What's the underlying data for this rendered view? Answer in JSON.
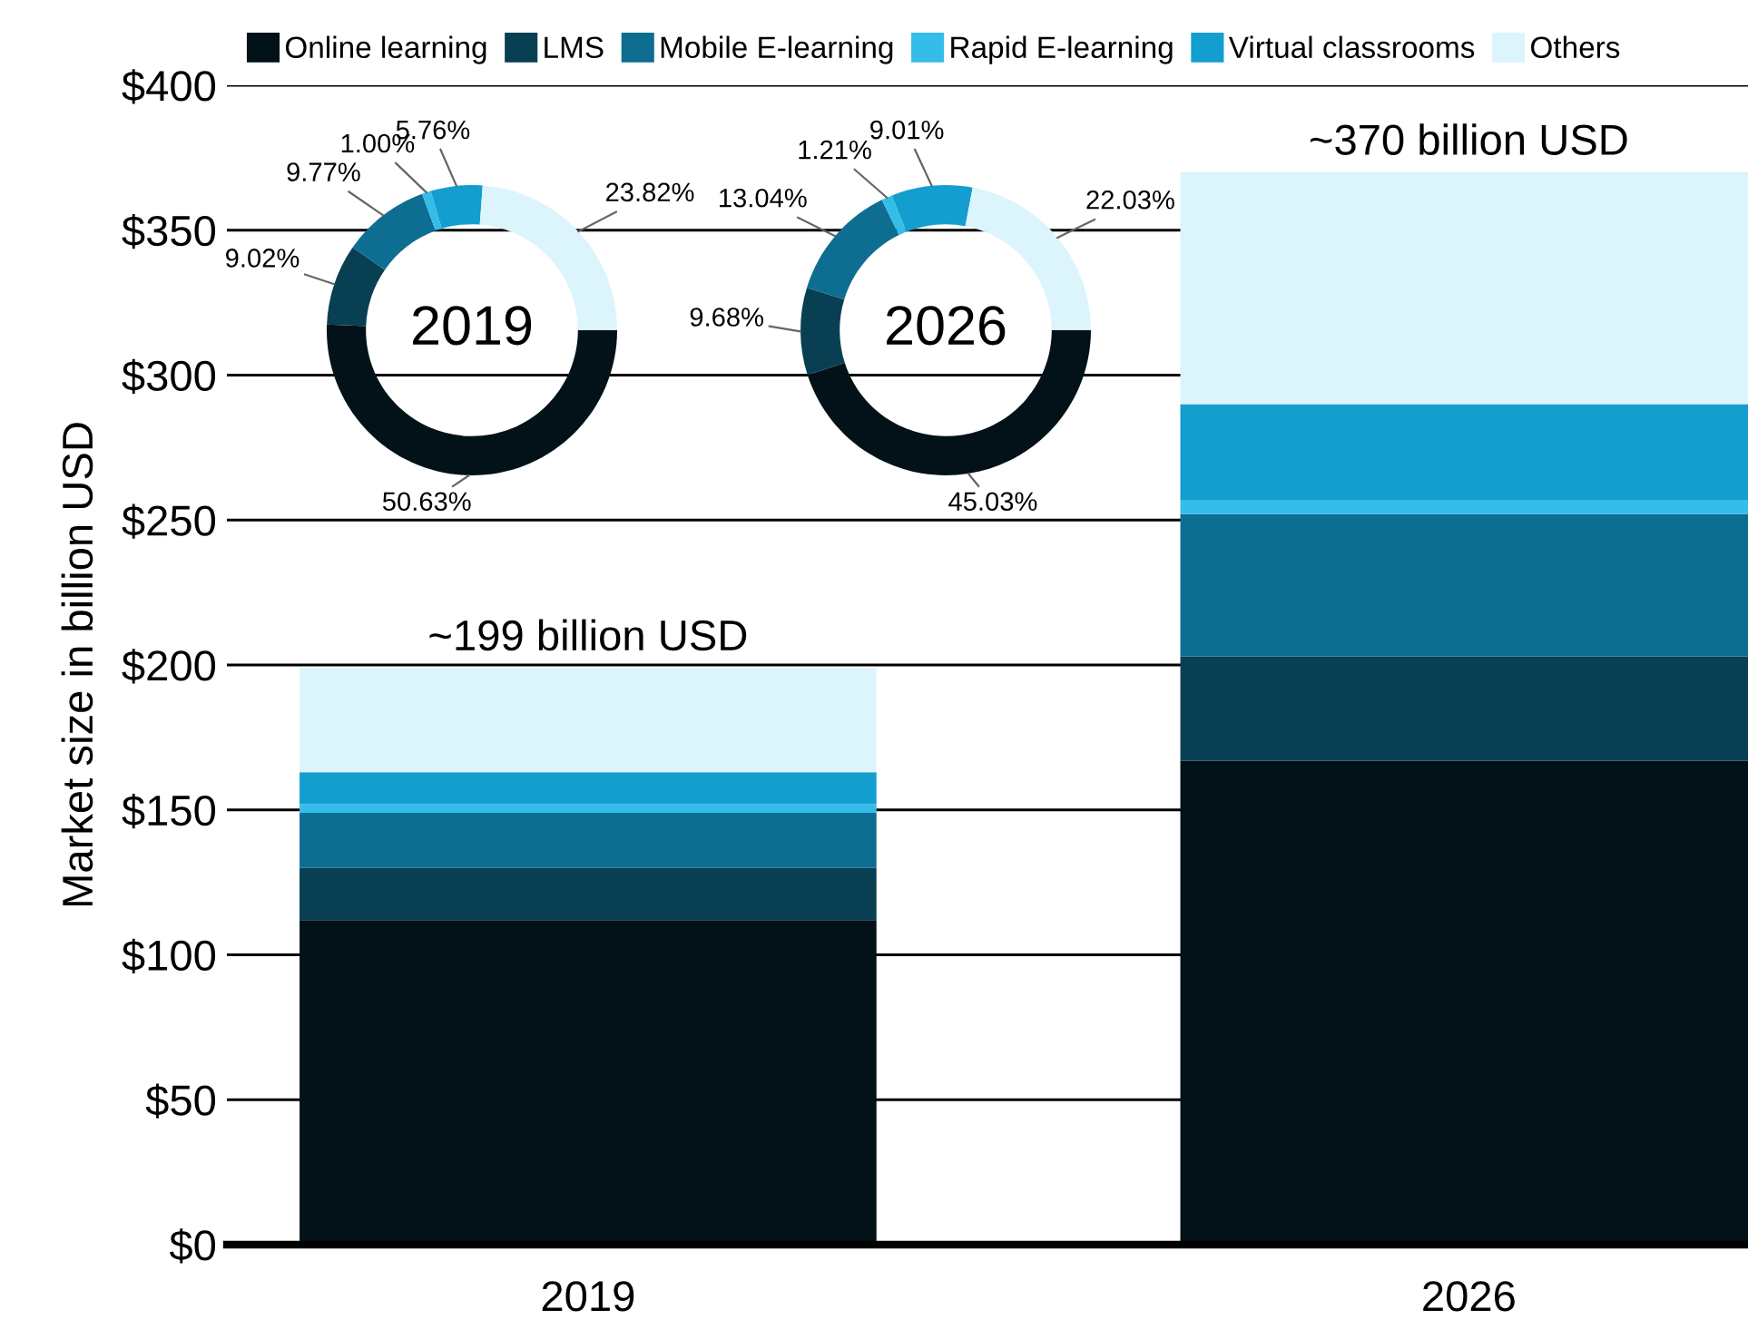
{
  "chart_data": [
    {
      "type": "bar",
      "stacked": true,
      "ylabel": "Market size in billion USD",
      "categories": [
        "2019",
        "2026"
      ],
      "series": [
        {
          "name": "Online learning",
          "color": "#031118",
          "values": [
            112,
            167
          ]
        },
        {
          "name": "LMS",
          "color": "#083f53",
          "values": [
            18,
            36
          ]
        },
        {
          "name": "Mobile E-learning",
          "color": "#0d6e91",
          "values": [
            19,
            49
          ]
        },
        {
          "name": "Rapid E-learning",
          "color": "#35bde9",
          "values": [
            3,
            5
          ]
        },
        {
          "name": "Virtual classrooms",
          "color": "#139ecf",
          "values": [
            11,
            33
          ]
        },
        {
          "name": "Others",
          "color": "#dcf4fc",
          "values": [
            36,
            80
          ]
        }
      ],
      "ylim": [
        0,
        400
      ],
      "yticks": [
        {
          "value": 0,
          "label": "$0"
        },
        {
          "value": 50,
          "label": "$50"
        },
        {
          "value": 100,
          "label": "$100"
        },
        {
          "value": 150,
          "label": "$150"
        },
        {
          "value": 200,
          "label": "$200"
        },
        {
          "value": 250,
          "label": "$250"
        },
        {
          "value": 300,
          "label": "$300"
        },
        {
          "value": 350,
          "label": "$350"
        },
        {
          "value": 400,
          "label": "$400"
        }
      ],
      "grid": "y",
      "legend": "top",
      "totals": [
        "~199 billion USD",
        "~370 billion USD"
      ]
    },
    {
      "type": "donut",
      "title": "2019",
      "categories": [
        null,
        null,
        null,
        null,
        null,
        null
      ],
      "values": [
        50.63,
        9.02,
        9.77,
        1.0,
        5.76,
        23.82
      ],
      "colors": [
        "#031118",
        "#083f53",
        "#0d6e91",
        "#35bde9",
        "#139ecf",
        "#dcf4fc"
      ],
      "value_labels": [
        "50.63%",
        "9.02%",
        "9.77%",
        "1.00%",
        "5.76%",
        "23.82%"
      ]
    },
    {
      "type": "donut",
      "title": "2026",
      "categories": [
        null,
        null,
        null,
        null,
        null,
        null
      ],
      "values": [
        45.03,
        9.68,
        13.04,
        1.21,
        9.01,
        22.03
      ],
      "colors": [
        "#031118",
        "#083f53",
        "#0d6e91",
        "#35bde9",
        "#139ecf",
        "#dcf4fc"
      ],
      "value_labels": [
        "45.03%",
        "9.68%",
        "13.04%",
        "1.21%",
        "9.01%",
        "22.03%"
      ]
    }
  ]
}
